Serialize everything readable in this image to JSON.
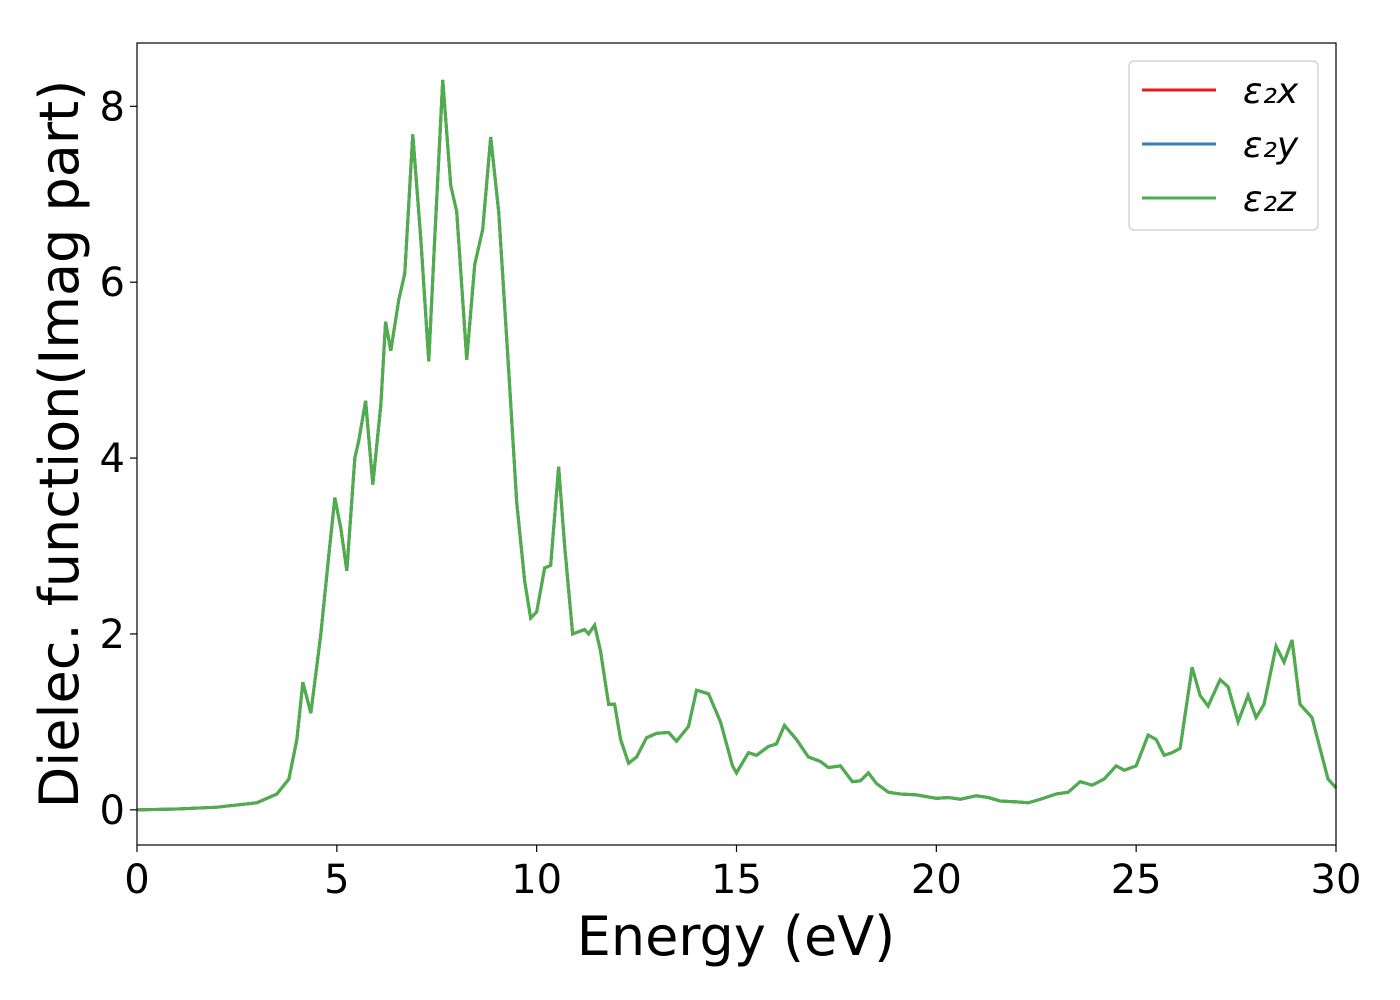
{
  "chart_data": {
    "type": "line",
    "xlabel": "Energy (eV)",
    "ylabel": "Dielec. function(Imag part)",
    "xlim": [
      0,
      30
    ],
    "ylim": [
      -0.4,
      8.72
    ],
    "xticks": [
      0,
      5,
      10,
      15,
      20,
      25,
      30
    ],
    "yticks": [
      0,
      2,
      4,
      6,
      8
    ],
    "legend": "upper right",
    "grid": false,
    "x": [
      0,
      1,
      2,
      3,
      3.5,
      3.8,
      4.0,
      4.15,
      4.35,
      4.6,
      4.8,
      4.95,
      5.1,
      5.25,
      5.45,
      5.55,
      5.72,
      5.9,
      6.1,
      6.22,
      6.35,
      6.55,
      6.7,
      6.9,
      7.1,
      7.3,
      7.45,
      7.65,
      7.85,
      8.0,
      8.25,
      8.45,
      8.65,
      8.85,
      9.05,
      9.3,
      9.5,
      9.7,
      9.85,
      10.0,
      10.2,
      10.35,
      10.55,
      10.7,
      10.9,
      11.2,
      11.3,
      11.45,
      11.6,
      11.8,
      11.95,
      12.1,
      12.3,
      12.5,
      12.75,
      13.0,
      13.3,
      13.5,
      13.8,
      14.0,
      14.3,
      14.6,
      14.9,
      15.0,
      15.3,
      15.5,
      15.8,
      16.0,
      16.2,
      16.5,
      16.8,
      17.1,
      17.3,
      17.6,
      17.9,
      18.1,
      18.3,
      18.5,
      18.8,
      19.1,
      19.5,
      20.0,
      20.3,
      20.6,
      21.0,
      21.3,
      21.6,
      22.0,
      22.3,
      22.6,
      23.0,
      23.3,
      23.6,
      23.9,
      24.2,
      24.5,
      24.7,
      25.0,
      25.3,
      25.5,
      25.7,
      25.9,
      26.1,
      26.4,
      26.6,
      26.8,
      27.1,
      27.3,
      27.55,
      27.8,
      28.0,
      28.2,
      28.5,
      28.7,
      28.9,
      29.1,
      29.4,
      29.6,
      29.8,
      30
    ],
    "series": [
      {
        "name": "ε₂x",
        "color": "#e41a1c",
        "values": [
          0,
          0.01,
          0.03,
          0.08,
          0.18,
          0.35,
          0.8,
          1.45,
          1.1,
          2.0,
          2.9,
          3.55,
          3.2,
          2.72,
          4.0,
          4.2,
          4.65,
          3.7,
          4.6,
          5.55,
          5.22,
          5.8,
          6.1,
          7.68,
          6.5,
          5.1,
          6.5,
          8.3,
          7.1,
          6.8,
          5.12,
          6.2,
          6.6,
          7.65,
          6.8,
          5.0,
          3.5,
          2.6,
          2.18,
          2.25,
          2.75,
          2.78,
          3.9,
          3.0,
          2.0,
          2.05,
          2.0,
          2.1,
          1.8,
          1.2,
          1.2,
          0.8,
          0.53,
          0.6,
          0.82,
          0.87,
          0.88,
          0.78,
          0.95,
          1.36,
          1.32,
          1.0,
          0.5,
          0.42,
          0.65,
          0.62,
          0.72,
          0.75,
          0.96,
          0.8,
          0.6,
          0.55,
          0.48,
          0.5,
          0.32,
          0.33,
          0.42,
          0.3,
          0.2,
          0.18,
          0.17,
          0.13,
          0.14,
          0.12,
          0.16,
          0.14,
          0.1,
          0.09,
          0.08,
          0.12,
          0.18,
          0.2,
          0.32,
          0.28,
          0.35,
          0.5,
          0.45,
          0.5,
          0.85,
          0.8,
          0.62,
          0.65,
          0.7,
          1.62,
          1.3,
          1.18,
          1.48,
          1.4,
          1.0,
          1.3,
          1.05,
          1.2,
          1.86,
          1.68,
          1.93,
          1.2,
          1.05,
          0.7,
          0.35,
          0.25
        ]
      },
      {
        "name": "ε₂y",
        "color": "#377eb8",
        "values": [
          0,
          0.01,
          0.03,
          0.08,
          0.18,
          0.35,
          0.8,
          1.45,
          1.1,
          2.0,
          2.9,
          3.55,
          3.2,
          2.72,
          4.0,
          4.2,
          4.65,
          3.7,
          4.6,
          5.55,
          5.22,
          5.8,
          6.1,
          7.68,
          6.5,
          5.1,
          6.5,
          8.3,
          7.1,
          6.8,
          5.12,
          6.2,
          6.6,
          7.65,
          6.8,
          5.0,
          3.5,
          2.6,
          2.18,
          2.25,
          2.75,
          2.78,
          3.9,
          3.0,
          2.0,
          2.05,
          2.0,
          2.1,
          1.8,
          1.2,
          1.2,
          0.8,
          0.53,
          0.6,
          0.82,
          0.87,
          0.88,
          0.78,
          0.95,
          1.36,
          1.32,
          1.0,
          0.5,
          0.42,
          0.65,
          0.62,
          0.72,
          0.75,
          0.96,
          0.8,
          0.6,
          0.55,
          0.48,
          0.5,
          0.32,
          0.33,
          0.42,
          0.3,
          0.2,
          0.18,
          0.17,
          0.13,
          0.14,
          0.12,
          0.16,
          0.14,
          0.1,
          0.09,
          0.08,
          0.12,
          0.18,
          0.2,
          0.32,
          0.28,
          0.35,
          0.5,
          0.45,
          0.5,
          0.85,
          0.8,
          0.62,
          0.65,
          0.7,
          1.62,
          1.3,
          1.18,
          1.48,
          1.4,
          1.0,
          1.3,
          1.05,
          1.2,
          1.86,
          1.68,
          1.93,
          1.2,
          1.05,
          0.7,
          0.35,
          0.25
        ]
      },
      {
        "name": "ε₂z",
        "color": "#4daf4a",
        "values": [
          0,
          0.01,
          0.03,
          0.08,
          0.18,
          0.35,
          0.8,
          1.45,
          1.1,
          2.0,
          2.9,
          3.55,
          3.2,
          2.72,
          4.0,
          4.2,
          4.65,
          3.7,
          4.6,
          5.55,
          5.22,
          5.8,
          6.1,
          7.68,
          6.5,
          5.1,
          6.5,
          8.3,
          7.1,
          6.8,
          5.12,
          6.2,
          6.6,
          7.65,
          6.8,
          5.0,
          3.5,
          2.6,
          2.18,
          2.25,
          2.75,
          2.78,
          3.9,
          3.0,
          2.0,
          2.05,
          2.0,
          2.1,
          1.8,
          1.2,
          1.2,
          0.8,
          0.53,
          0.6,
          0.82,
          0.87,
          0.88,
          0.78,
          0.95,
          1.36,
          1.32,
          1.0,
          0.5,
          0.42,
          0.65,
          0.62,
          0.72,
          0.75,
          0.96,
          0.8,
          0.6,
          0.55,
          0.48,
          0.5,
          0.32,
          0.33,
          0.42,
          0.3,
          0.2,
          0.18,
          0.17,
          0.13,
          0.14,
          0.12,
          0.16,
          0.14,
          0.1,
          0.09,
          0.08,
          0.12,
          0.18,
          0.2,
          0.32,
          0.28,
          0.35,
          0.5,
          0.45,
          0.5,
          0.85,
          0.8,
          0.62,
          0.65,
          0.7,
          1.62,
          1.3,
          1.18,
          1.48,
          1.4,
          1.0,
          1.3,
          1.05,
          1.2,
          1.86,
          1.68,
          1.93,
          1.2,
          1.05,
          0.7,
          0.35,
          0.25
        ]
      }
    ]
  }
}
